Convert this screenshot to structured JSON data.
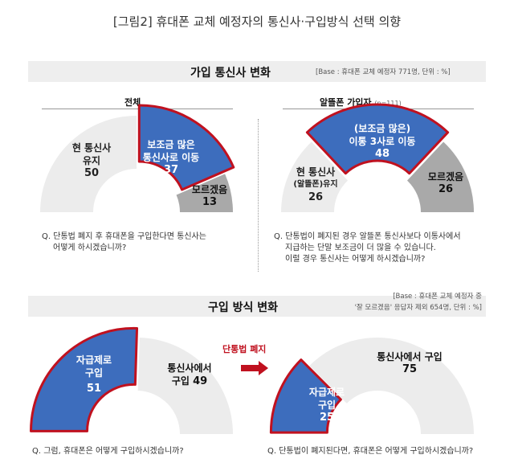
{
  "header": {
    "title": "[그림2] 휴대폰 교체 예정자의 통신사·구입방식 선택 의향"
  },
  "section1": {
    "title": "가입 통신사 변화",
    "base": "[Base : 휴대폰 교체 예정자 771명, 단위 : %]",
    "left_subtitle": "전체",
    "right_subtitle": "알뜰폰 가입자",
    "right_subtitle_note": "(n=111)",
    "left_question": [
      "Q. 단통법 폐지 후 휴대폰을 구입한다면 통신사는",
      "어떻게 하시겠습니까?"
    ],
    "right_question": [
      "Q. 단통법이 폐지된 경우 알뜰폰 통신사보다 이통사에서",
      "지급하는 단말 보조금이 더 많을 수 있습니다.",
      "이럴 경우 통신사는 어떻게 하시겠습니까?"
    ]
  },
  "section2": {
    "title": "구입 방식 변화",
    "base_line1": "[Base : 휴대폰 교체 예정자 중",
    "base_line2": "'잘 모르겠음' 응답자 제외 654명, 단위 : %]",
    "arrow_label": "단통법 폐지",
    "left_question": "Q. 그럼, 휴대폰은 어떻게 구입하시겠습니까?",
    "right_question": "Q. 단통법이 폐지된다면, 휴대폰은 어떻게 구입하시겠습니까?"
  },
  "colors": {
    "blue": "#3d6dbd",
    "red": "#c0111f",
    "gray": "#a9a9a9",
    "light": "#ececec",
    "arrow": "#c0111f"
  },
  "chart_data": [
    {
      "type": "pie",
      "shape": "semicircle",
      "title": "전체",
      "slices": [
        {
          "label": "현 통신사 유지",
          "lines": [
            "현 통신사",
            "유지"
          ],
          "value": 50,
          "highlight": false
        },
        {
          "label": "보조금 많은 통신사로 이동",
          "lines": [
            "보조금 많은",
            "통신사로 이동"
          ],
          "value": 37,
          "highlight": true
        },
        {
          "label": "모르겠음",
          "lines": [
            "모르겠음"
          ],
          "value": 13,
          "highlight": false
        }
      ]
    },
    {
      "type": "pie",
      "shape": "semicircle",
      "title": "알뜰폰 가입자",
      "slices": [
        {
          "label": "현 통신사(알뜰폰)유지",
          "lines": [
            "현 통신사",
            "(알뜰폰)유지"
          ],
          "value": 26,
          "highlight": false
        },
        {
          "label": "(보조금 많은) 이통 3사로 이동",
          "lines": [
            "(보조금 많은)",
            "이통 3사로 이동"
          ],
          "value": 48,
          "highlight": true
        },
        {
          "label": "모르겠음",
          "lines": [
            "모르겠음"
          ],
          "value": 26,
          "highlight": false
        }
      ]
    },
    {
      "type": "pie",
      "shape": "semicircle",
      "title": "",
      "slices": [
        {
          "label": "자급제로 구입",
          "lines": [
            "자급제로",
            "구입"
          ],
          "value": 51,
          "highlight": true
        },
        {
          "label": "통신사에서 구입",
          "lines": [
            "통신사에서",
            "구입"
          ],
          "value": 49,
          "highlight": false
        }
      ]
    },
    {
      "type": "pie",
      "shape": "semicircle",
      "title": "",
      "slices": [
        {
          "label": "자급제로 구입",
          "lines": [
            "자급제로",
            "구입"
          ],
          "value": 25,
          "highlight": true
        },
        {
          "label": "통신사에서 구입",
          "lines": [
            "통신사에서 구입"
          ],
          "value": 75,
          "highlight": false
        }
      ]
    }
  ]
}
